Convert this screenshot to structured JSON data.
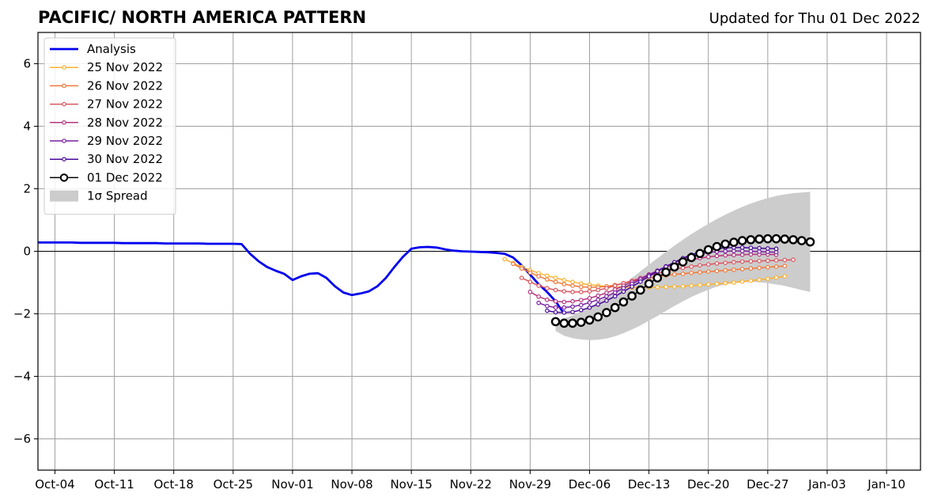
{
  "chart_data": {
    "type": "line",
    "title": "PACIFIC/ NORTH AMERICA PATTERN",
    "subtitle": "Updated for Thu 01 Dec 2022",
    "xlabel": "",
    "ylabel": "",
    "x_range": [
      "2022-10-02",
      "2023-01-14"
    ],
    "ylim": [
      -7,
      7
    ],
    "grid": true,
    "legend_position": "top-left",
    "x_ticks": [
      {
        "date": "2022-10-04",
        "label": "Oct-04"
      },
      {
        "date": "2022-10-11",
        "label": "Oct-11"
      },
      {
        "date": "2022-10-18",
        "label": "Oct-18"
      },
      {
        "date": "2022-10-25",
        "label": "Oct-25"
      },
      {
        "date": "2022-11-01",
        "label": "Nov-01"
      },
      {
        "date": "2022-11-08",
        "label": "Nov-08"
      },
      {
        "date": "2022-11-15",
        "label": "Nov-15"
      },
      {
        "date": "2022-11-22",
        "label": "Nov-22"
      },
      {
        "date": "2022-11-29",
        "label": "Nov-29"
      },
      {
        "date": "2022-12-06",
        "label": "Dec-06"
      },
      {
        "date": "2022-12-13",
        "label": "Dec-13"
      },
      {
        "date": "2022-12-20",
        "label": "Dec-20"
      },
      {
        "date": "2022-12-27",
        "label": "Dec-27"
      },
      {
        "date": "2023-01-03",
        "label": "Jan-03"
      },
      {
        "date": "2023-01-10",
        "label": "Jan-10"
      }
    ],
    "y_ticks": [
      {
        "value": -6,
        "label": "−6"
      },
      {
        "value": -4,
        "label": "−4"
      },
      {
        "value": -2,
        "label": "−2"
      },
      {
        "value": 0,
        "label": "0"
      },
      {
        "value": 2,
        "label": "2"
      },
      {
        "value": 4,
        "label": "4"
      },
      {
        "value": 6,
        "label": "6"
      }
    ],
    "series": [
      {
        "name": "Analysis",
        "color": "#0000ee",
        "style": "line",
        "start_date": "2022-10-02",
        "values": [
          0.28,
          0.28,
          0.28,
          0.28,
          0.28,
          0.27,
          0.27,
          0.27,
          0.27,
          0.27,
          0.26,
          0.26,
          0.26,
          0.26,
          0.26,
          0.25,
          0.25,
          0.25,
          0.25,
          0.25,
          0.24,
          0.24,
          0.24,
          0.24,
          0.23,
          -0.08,
          -0.32,
          -0.5,
          -0.62,
          -0.72,
          -0.92,
          -0.8,
          -0.72,
          -0.7,
          -0.85,
          -1.12,
          -1.32,
          -1.4,
          -1.35,
          -1.28,
          -1.12,
          -0.85,
          -0.5,
          -0.18,
          0.08,
          0.13,
          0.14,
          0.12,
          0.06,
          0.02,
          0.0,
          -0.01,
          -0.02,
          -0.03,
          -0.05,
          -0.08,
          -0.2,
          -0.45,
          -0.75,
          -1.05,
          -1.3,
          -1.6,
          -2.0
        ]
      },
      {
        "name": "25 Nov 2022",
        "color": "#f9b233",
        "style": "marker-line",
        "start_date": "2022-11-26",
        "values": [
          -0.25,
          -0.38,
          -0.5,
          -0.6,
          -0.7,
          -0.78,
          -0.85,
          -0.92,
          -0.98,
          -1.03,
          -1.07,
          -1.1,
          -1.12,
          -1.14,
          -1.15,
          -1.16,
          -1.16,
          -1.16,
          -1.15,
          -1.14,
          -1.13,
          -1.12,
          -1.1,
          -1.08,
          -1.06,
          -1.04,
          -1.02,
          -1.0,
          -0.97,
          -0.94,
          -0.91,
          -0.88,
          -0.84,
          -0.8
        ]
      },
      {
        "name": "26 Nov 2022",
        "color": "#f0793a",
        "style": "marker-line",
        "start_date": "2022-11-27",
        "values": [
          -0.4,
          -0.55,
          -0.68,
          -0.8,
          -0.9,
          -0.98,
          -1.05,
          -1.1,
          -1.14,
          -1.15,
          -1.15,
          -1.12,
          -1.08,
          -1.02,
          -0.96,
          -0.9,
          -0.85,
          -0.8,
          -0.77,
          -0.74,
          -0.72,
          -0.69,
          -0.67,
          -0.65,
          -0.63,
          -0.61,
          -0.59,
          -0.57,
          -0.55,
          -0.53,
          -0.51,
          -0.49,
          -0.47
        ]
      },
      {
        "name": "27 Nov 2022",
        "color": "#d9565f",
        "style": "marker-line",
        "start_date": "2022-11-28",
        "values": [
          -0.85,
          -0.98,
          -1.1,
          -1.18,
          -1.24,
          -1.28,
          -1.3,
          -1.3,
          -1.28,
          -1.24,
          -1.18,
          -1.1,
          -1.02,
          -0.94,
          -0.86,
          -0.78,
          -0.7,
          -0.64,
          -0.58,
          -0.53,
          -0.49,
          -0.45,
          -0.42,
          -0.39,
          -0.37,
          -0.35,
          -0.33,
          -0.32,
          -0.31,
          -0.3,
          -0.29,
          -0.28,
          -0.27
        ]
      },
      {
        "name": "28 Nov 2022",
        "color": "#b5357f",
        "style": "marker-line",
        "start_date": "2022-11-29",
        "values": [
          -1.3,
          -1.45,
          -1.55,
          -1.6,
          -1.62,
          -1.6,
          -1.56,
          -1.5,
          -1.42,
          -1.33,
          -1.22,
          -1.1,
          -0.98,
          -0.86,
          -0.74,
          -0.62,
          -0.51,
          -0.42,
          -0.34,
          -0.27,
          -0.22,
          -0.18,
          -0.15,
          -0.13,
          -0.12,
          -0.11,
          -0.1,
          -0.1,
          -0.1,
          -0.11
        ]
      },
      {
        "name": "29 Nov 2022",
        "color": "#7a1fa2",
        "style": "marker-line",
        "start_date": "2022-11-30",
        "values": [
          -1.65,
          -1.75,
          -1.8,
          -1.8,
          -1.77,
          -1.72,
          -1.64,
          -1.55,
          -1.44,
          -1.32,
          -1.18,
          -1.04,
          -0.9,
          -0.76,
          -0.62,
          -0.48,
          -0.36,
          -0.25,
          -0.16,
          -0.09,
          -0.04,
          -0.01,
          0.0,
          0.01,
          0.01,
          0.0,
          -0.01,
          -0.02,
          -0.03
        ]
      },
      {
        "name": "30 Nov 2022",
        "color": "#47099a",
        "style": "marker-line",
        "start_date": "2022-12-01",
        "values": [
          -1.9,
          -1.95,
          -1.96,
          -1.94,
          -1.88,
          -1.8,
          -1.7,
          -1.58,
          -1.44,
          -1.29,
          -1.13,
          -0.97,
          -0.8,
          -0.64,
          -0.49,
          -0.35,
          -0.22,
          -0.11,
          -0.02,
          0.05,
          0.09,
          0.11,
          0.12,
          0.12,
          0.11,
          0.1,
          0.09,
          0.08
        ]
      },
      {
        "name": "01 Dec 2022",
        "color": "#000000",
        "style": "open-circle-line",
        "start_date": "2022-12-02",
        "values": [
          -2.25,
          -2.3,
          -2.3,
          -2.27,
          -2.2,
          -2.1,
          -1.96,
          -1.8,
          -1.62,
          -1.43,
          -1.24,
          -1.04,
          -0.85,
          -0.67,
          -0.5,
          -0.34,
          -0.2,
          -0.07,
          0.05,
          0.15,
          0.23,
          0.29,
          0.34,
          0.37,
          0.39,
          0.4,
          0.4,
          0.39,
          0.37,
          0.34,
          0.3
        ]
      }
    ],
    "spread": {
      "name": "1σ Spread",
      "color": "#cccccc",
      "start_date": "2022-12-02",
      "upper": [
        -2.25,
        -2.15,
        -2.05,
        -1.92,
        -1.78,
        -1.62,
        -1.45,
        -1.26,
        -1.06,
        -0.85,
        -0.64,
        -0.43,
        -0.22,
        -0.02,
        0.18,
        0.37,
        0.55,
        0.72,
        0.88,
        1.03,
        1.17,
        1.3,
        1.42,
        1.53,
        1.62,
        1.7,
        1.77,
        1.82,
        1.86,
        1.88,
        1.9
      ],
      "lower": [
        -2.55,
        -2.7,
        -2.78,
        -2.82,
        -2.84,
        -2.83,
        -2.79,
        -2.72,
        -2.62,
        -2.5,
        -2.37,
        -2.22,
        -2.07,
        -1.91,
        -1.75,
        -1.6,
        -1.46,
        -1.34,
        -1.23,
        -1.13,
        -1.06,
        -1.01,
        -0.99,
        -0.98,
        -0.99,
        -1.02,
        -1.06,
        -1.11,
        -1.17,
        -1.24,
        -1.3
      ]
    }
  }
}
